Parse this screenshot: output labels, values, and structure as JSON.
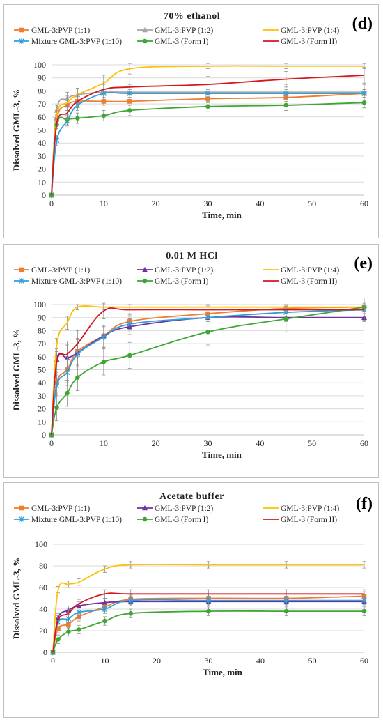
{
  "chart_data": [
    {
      "type": "line",
      "title": "70% ethanol",
      "panel_letter": "(d)",
      "xlabel": "Time, min",
      "ylabel": "Dissolved GML-3, %",
      "xlim": [
        0,
        60
      ],
      "ylim": [
        0,
        100
      ],
      "xticks": [
        0,
        10,
        20,
        30,
        40,
        50,
        60
      ],
      "yticks": [
        0,
        10,
        20,
        30,
        40,
        50,
        60,
        70,
        80,
        90,
        100
      ],
      "grid": "horizontal",
      "legend": "top",
      "x": [
        0,
        1,
        3,
        5,
        10,
        15,
        30,
        45,
        60
      ],
      "series": [
        {
          "name": "GML-3:PVP  (1:1)",
          "color": "#ED7D31",
          "marker": "square",
          "values": [
            0,
            58,
            69,
            72,
            72,
            72,
            74,
            75,
            78
          ],
          "errors": [
            0,
            4,
            4,
            4,
            3,
            3,
            3,
            3,
            3
          ]
        },
        {
          "name": "GML-3:PVP  (1:2)",
          "color": "#A5A5A5",
          "marker": "triangle",
          "values": [
            0,
            65,
            74,
            77,
            79,
            79,
            79,
            79,
            79
          ],
          "errors": [
            0,
            4,
            5,
            5,
            6,
            6,
            6,
            6,
            6
          ]
        },
        {
          "name": "GML-3:PVP  (1:4)",
          "color": "#FFC000",
          "marker": "none",
          "values": [
            0,
            61,
            71,
            77,
            86,
            97,
            99,
            99,
            99
          ],
          "errors": [
            0,
            4,
            5,
            5,
            6,
            4,
            2,
            2,
            2
          ]
        },
        {
          "name": "Mixture GML-3:PVP (1:10)",
          "color": "#2E9FDB",
          "marker": "star",
          "values": [
            0,
            42,
            57,
            69,
            78,
            78,
            78,
            78,
            78
          ],
          "errors": [
            0,
            4,
            4,
            4,
            3,
            3,
            3,
            3,
            3
          ]
        },
        {
          "name": "GML-3 (Form I)",
          "color": "#3FA535",
          "marker": "circle",
          "values": [
            0,
            54,
            58,
            59,
            61,
            65,
            68,
            69,
            71
          ],
          "errors": [
            0,
            4,
            4,
            4,
            4,
            4,
            4,
            4,
            4
          ]
        },
        {
          "name": "GML-3 (Form II)",
          "color": "#D4171E",
          "marker": "none",
          "values": [
            0,
            55,
            63,
            72,
            81,
            83,
            85,
            89,
            92
          ],
          "errors": [
            0,
            4,
            5,
            5,
            6,
            6,
            6,
            6,
            6
          ]
        }
      ]
    },
    {
      "type": "line",
      "title": "0.01 M HCl",
      "panel_letter": "(e)",
      "xlabel": "Time, min",
      "ylabel": "Dissolved GML-3, %",
      "xlim": [
        0,
        60
      ],
      "ylim": [
        0,
        100
      ],
      "xticks": [
        0,
        10,
        20,
        30,
        40,
        50,
        60
      ],
      "yticks": [
        0,
        10,
        20,
        30,
        40,
        50,
        60,
        70,
        80,
        90,
        100
      ],
      "grid": "horizontal",
      "legend": "top",
      "x": [
        0,
        1,
        3,
        5,
        10,
        15,
        30,
        45,
        60
      ],
      "series": [
        {
          "name": "GML-3:PVP  (1:1)",
          "color": "#ED7D31",
          "marker": "square",
          "values": [
            0,
            40,
            50,
            64,
            76,
            87,
            93,
            97,
            98
          ],
          "errors": [
            0,
            8,
            10,
            10,
            8,
            6,
            3,
            3,
            3
          ]
        },
        {
          "name": "GML-3:PVP  (1:2)",
          "color": "#7030A0",
          "marker": "triangle",
          "values": [
            0,
            58,
            59,
            63,
            76,
            83,
            90,
            90,
            90
          ],
          "errors": [
            0,
            8,
            10,
            10,
            8,
            6,
            3,
            3,
            3
          ]
        },
        {
          "name": "GML-3:PVP  (1:4)",
          "color": "#FFC000",
          "marker": "none",
          "values": [
            0,
            69,
            86,
            98,
            98,
            98,
            98,
            98,
            98
          ],
          "errors": [
            0,
            5,
            5,
            2,
            2,
            2,
            2,
            2,
            2
          ]
        },
        {
          "name": "Mixture GML-3:PVP (1:10)",
          "color": "#2E9FDB",
          "marker": "star",
          "values": [
            0,
            38,
            48,
            62,
            75,
            85,
            90,
            94,
            96
          ],
          "errors": [
            0,
            8,
            10,
            10,
            8,
            6,
            3,
            3,
            3
          ]
        },
        {
          "name": "GML-3 (Form I)",
          "color": "#3FA535",
          "marker": "circle",
          "values": [
            0,
            21,
            32,
            44,
            56,
            61,
            79,
            89,
            98
          ],
          "errors": [
            0,
            10,
            10,
            10,
            10,
            10,
            10,
            10,
            10
          ]
        },
        {
          "name": "GML-3 (Form II)",
          "color": "#D4171E",
          "marker": "none",
          "values": [
            0,
            56,
            62,
            70,
            95,
            96,
            96,
            96,
            96
          ],
          "errors": [
            0,
            8,
            10,
            10,
            6,
            4,
            3,
            3,
            3
          ]
        }
      ]
    },
    {
      "type": "line",
      "title": "Acetate buffer",
      "panel_letter": "(f)",
      "xlabel": "Time, min",
      "ylabel": "Dissolved GML-3, %",
      "xlim": [
        0,
        60
      ],
      "ylim": [
        0,
        100
      ],
      "xticks": [
        0,
        10,
        20,
        30,
        40,
        50,
        60
      ],
      "yticks": [
        0,
        20,
        40,
        60,
        80,
        100
      ],
      "grid": "horizontal",
      "legend": "top",
      "x": [
        0,
        1,
        3,
        5,
        10,
        15,
        30,
        45,
        60
      ],
      "series": [
        {
          "name": "GML-3:PVP  (1:1)",
          "color": "#ED7D31",
          "marker": "square",
          "values": [
            0,
            22,
            26,
            33,
            42,
            49,
            50,
            50,
            52
          ],
          "errors": [
            0,
            4,
            4,
            4,
            4,
            4,
            4,
            4,
            4
          ]
        },
        {
          "name": "GML-3:PVP  (1:2)",
          "color": "#7030A0",
          "marker": "triangle",
          "values": [
            0,
            32,
            39,
            43,
            46,
            47,
            47,
            47,
            47
          ],
          "errors": [
            0,
            4,
            4,
            4,
            4,
            4,
            4,
            4,
            4
          ]
        },
        {
          "name": "GML-3:PVP  (1:4)",
          "color": "#FFC000",
          "marker": "none",
          "values": [
            0,
            58,
            63,
            65,
            77,
            81,
            81,
            81,
            81
          ],
          "errors": [
            0,
            3,
            3,
            3,
            3,
            3,
            3,
            3,
            3
          ]
        },
        {
          "name": "Mixture GML-3:PVP (1:10)",
          "color": "#2E9FDB",
          "marker": "star",
          "values": [
            0,
            28,
            31,
            37,
            40,
            48,
            48,
            48,
            48
          ],
          "errors": [
            0,
            4,
            4,
            4,
            4,
            4,
            4,
            4,
            4
          ]
        },
        {
          "name": "GML-3 (Form I)",
          "color": "#3FA535",
          "marker": "circle",
          "values": [
            0,
            12,
            19,
            21,
            29,
            36,
            38,
            38,
            38
          ],
          "errors": [
            0,
            4,
            4,
            4,
            4,
            4,
            4,
            4,
            4
          ]
        },
        {
          "name": "GML-3 (Form II)",
          "color": "#D4171E",
          "marker": "none",
          "values": [
            0,
            30,
            36,
            45,
            54,
            54,
            54,
            54,
            54
          ],
          "errors": [
            0,
            4,
            4,
            4,
            4,
            4,
            4,
            4,
            4
          ]
        }
      ]
    }
  ]
}
